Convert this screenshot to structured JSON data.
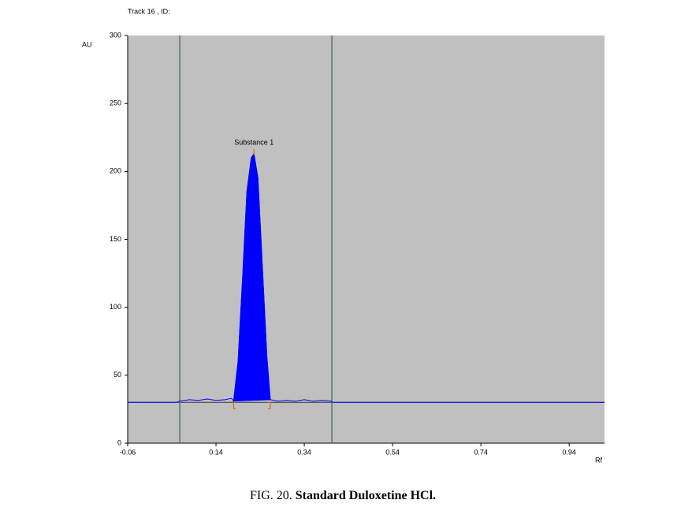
{
  "chart_data": {
    "type": "line",
    "title": "Track 16 , ID:",
    "y_label": "AU",
    "x_label": "Rf",
    "caption_label": "FIG. 20.",
    "caption_text": "Standard Duloxetine HCl.",
    "xlim": [
      -0.06,
      1.02
    ],
    "ylim": [
      0,
      300
    ],
    "xticks": [
      -0.06,
      0.14,
      0.34,
      0.54,
      0.74,
      0.94
    ],
    "yticks": [
      0,
      50,
      100,
      150,
      200,
      250,
      300
    ],
    "background": "#c0c0c0",
    "color": "#0000ff",
    "baseline": 30,
    "vlines": [
      0.058,
      0.4025
    ],
    "x": [
      -0.06,
      0.05,
      0.058,
      0.08,
      0.1,
      0.12,
      0.14,
      0.16,
      0.175,
      0.18,
      0.19,
      0.2,
      0.21,
      0.22,
      0.226,
      0.235,
      0.245,
      0.255,
      0.263,
      0.28,
      0.3,
      0.32,
      0.34,
      0.36,
      0.38,
      0.4,
      0.405,
      1.02
    ],
    "values": [
      30,
      30,
      31,
      32,
      31.5,
      32.5,
      31.5,
      32,
      33,
      31,
      60,
      120,
      185,
      210,
      213,
      195,
      130,
      65,
      32,
      31,
      31.5,
      31,
      32,
      31,
      31.5,
      31,
      30,
      30
    ],
    "peak": {
      "label": "Substance 1",
      "start": 0.18,
      "end": 0.263,
      "apex": 0.226,
      "color": "#e06000"
    }
  }
}
